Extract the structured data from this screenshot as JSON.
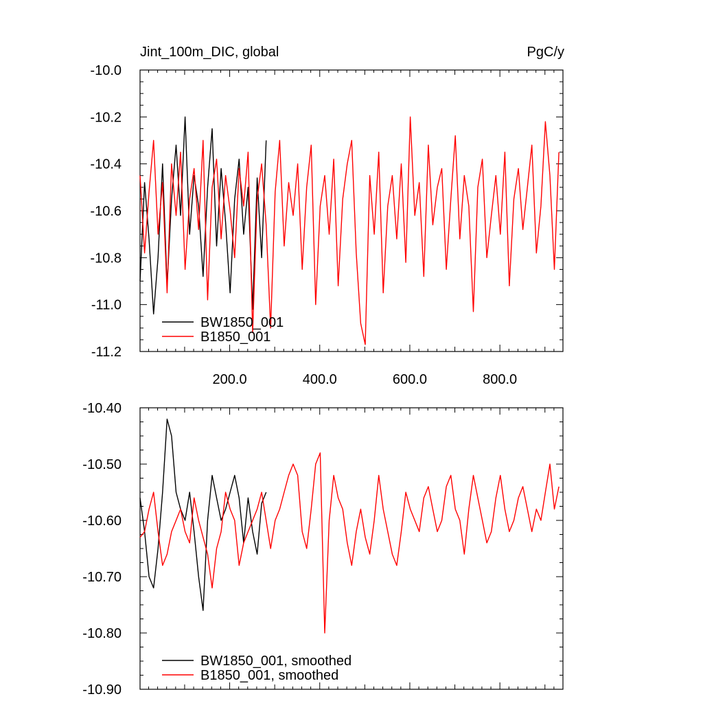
{
  "chart_data": [
    {
      "type": "line",
      "title_left": "Jint_100m_DIC, global",
      "title_right": "PgC/y",
      "xlim": [
        1,
        940
      ],
      "ylim": [
        -11.2,
        -10.0
      ],
      "yticks": [
        "-10.0",
        "-10.2",
        "-10.4",
        "-10.6",
        "-10.8",
        "-11.0",
        "-11.2"
      ],
      "xticks": [
        "200.0",
        "400.0",
        "600.0",
        "800.0"
      ],
      "xtick_values": [
        200,
        400,
        600,
        800
      ],
      "legend_position": "bottom-left",
      "series": [
        {
          "name": "BW1850_001",
          "color": "#000000",
          "x_start": 1,
          "x_step": 10,
          "values": [
            -10.9,
            -10.48,
            -10.72,
            -11.04,
            -10.8,
            -10.4,
            -10.92,
            -10.55,
            -10.32,
            -10.62,
            -10.2,
            -10.7,
            -10.45,
            -10.58,
            -10.88,
            -10.5,
            -10.25,
            -10.75,
            -10.42,
            -10.65,
            -10.95,
            -10.55,
            -10.38,
            -10.7,
            -10.5,
            -11.02,
            -10.46,
            -10.8,
            -10.3
          ]
        },
        {
          "name": "B1850_001",
          "color": "#ff0000",
          "x_start": 1,
          "x_step": 10,
          "values": [
            -10.45,
            -10.78,
            -10.52,
            -10.3,
            -10.7,
            -10.48,
            -10.95,
            -10.4,
            -10.62,
            -10.35,
            -10.85,
            -10.55,
            -10.42,
            -10.68,
            -10.3,
            -10.98,
            -10.5,
            -10.38,
            -10.72,
            -10.45,
            -10.6,
            -10.8,
            -10.42,
            -10.58,
            -10.35,
            -11.12,
            -10.55,
            -10.4,
            -10.66,
            -11.1,
            -10.52,
            -10.3,
            -10.75,
            -10.48,
            -10.62,
            -10.4,
            -10.85,
            -10.5,
            -10.32,
            -11.0,
            -10.58,
            -10.45,
            -10.7,
            -10.38,
            -10.92,
            -10.55,
            -10.4,
            -10.3,
            -10.78,
            -11.08,
            -11.17,
            -10.45,
            -10.7,
            -10.35,
            -10.95,
            -10.58,
            -10.45,
            -10.72,
            -10.4,
            -10.82,
            -10.2,
            -10.62,
            -10.48,
            -10.88,
            -10.32,
            -10.66,
            -10.5,
            -10.42,
            -10.85,
            -10.55,
            -10.28,
            -10.72,
            -10.45,
            -10.58,
            -11.03,
            -10.5,
            -10.38,
            -10.8,
            -10.62,
            -10.45,
            -10.7,
            -10.35,
            -10.92,
            -10.55,
            -10.42,
            -10.68,
            -10.5,
            -10.32,
            -10.78,
            -10.58,
            -10.22,
            -10.45,
            -10.85,
            -10.35
          ]
        }
      ]
    },
    {
      "type": "line",
      "xlim": [
        1,
        940
      ],
      "ylim": [
        -10.9,
        -10.4
      ],
      "yticks": [
        "-10.40",
        "-10.50",
        "-10.60",
        "-10.70",
        "-10.80",
        "-10.90"
      ],
      "legend_position": "bottom-left",
      "series": [
        {
          "name": "BW1850_001, smoothed",
          "color": "#000000",
          "x_start": 1,
          "x_step": 10,
          "values": [
            -10.56,
            -10.62,
            -10.7,
            -10.72,
            -10.65,
            -10.55,
            -10.42,
            -10.45,
            -10.55,
            -10.58,
            -10.6,
            -10.55,
            -10.62,
            -10.7,
            -10.76,
            -10.6,
            -10.52,
            -10.56,
            -10.6,
            -10.58,
            -10.55,
            -10.52,
            -10.56,
            -10.64,
            -10.56,
            -10.62,
            -10.66,
            -10.57,
            -10.55
          ]
        },
        {
          "name": "B1850_001, smoothed",
          "color": "#ff0000",
          "x_start": 1,
          "x_step": 10,
          "values": [
            -10.63,
            -10.62,
            -10.58,
            -10.55,
            -10.62,
            -10.68,
            -10.66,
            -10.62,
            -10.6,
            -10.58,
            -10.62,
            -10.64,
            -10.56,
            -10.6,
            -10.63,
            -10.66,
            -10.72,
            -10.65,
            -10.62,
            -10.55,
            -10.58,
            -10.6,
            -10.68,
            -10.64,
            -10.62,
            -10.6,
            -10.58,
            -10.55,
            -10.6,
            -10.65,
            -10.6,
            -10.58,
            -10.55,
            -10.52,
            -10.5,
            -10.52,
            -10.62,
            -10.65,
            -10.58,
            -10.5,
            -10.48,
            -10.8,
            -10.6,
            -10.52,
            -10.56,
            -10.58,
            -10.64,
            -10.68,
            -10.62,
            -10.58,
            -10.63,
            -10.66,
            -10.6,
            -10.52,
            -10.58,
            -10.62,
            -10.66,
            -10.68,
            -10.62,
            -10.55,
            -10.58,
            -10.6,
            -10.62,
            -10.56,
            -10.54,
            -10.58,
            -10.62,
            -10.6,
            -10.54,
            -10.52,
            -10.58,
            -10.6,
            -10.66,
            -10.58,
            -10.52,
            -10.56,
            -10.6,
            -10.64,
            -10.62,
            -10.56,
            -10.52,
            -10.58,
            -10.62,
            -10.6,
            -10.56,
            -10.54,
            -10.58,
            -10.62,
            -10.58,
            -10.6,
            -10.55,
            -10.5,
            -10.58,
            -10.54
          ]
        }
      ]
    }
  ]
}
